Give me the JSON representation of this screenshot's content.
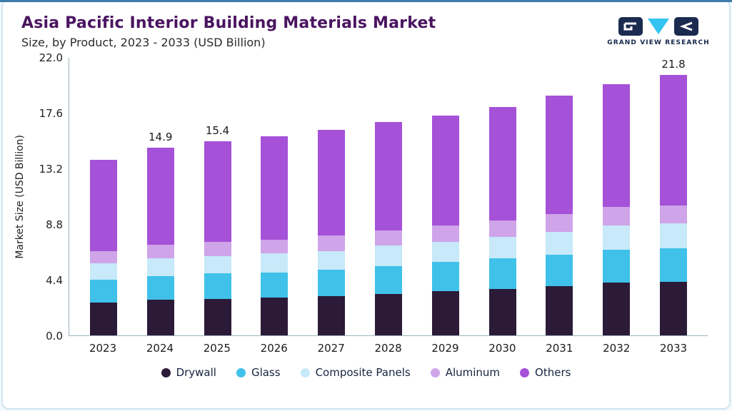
{
  "header": {
    "title": "Asia Pacific Interior Building Materials Market",
    "subtitle": "Size, by Product, 2023 - 2033 (USD Billion)",
    "brand": "GRAND VIEW RESEARCH"
  },
  "chart_data": {
    "type": "bar",
    "stacked": true,
    "title": "Asia Pacific Interior Building Materials Market Size, by Product, 2023 - 2033 (USD Billion)",
    "xlabel": "",
    "ylabel": "Market Size (USD Billion)",
    "ylim": [
      0,
      22
    ],
    "yticks": [
      "0.0",
      "4.4",
      "8.8",
      "13.2",
      "17.6",
      "22.0"
    ],
    "categories": [
      "2023",
      "2024",
      "2025",
      "2026",
      "2027",
      "2028",
      "2029",
      "2030",
      "2031",
      "2032",
      "2033"
    ],
    "series": [
      {
        "name": "Drywall",
        "color": "#2b1b38",
        "values": [
          2.6,
          2.8,
          2.9,
          3.0,
          3.1,
          3.3,
          3.5,
          3.7,
          3.9,
          4.2,
          4.5
        ]
      },
      {
        "name": "Glass",
        "color": "#3fc1ea",
        "values": [
          1.8,
          1.9,
          2.0,
          2.0,
          2.1,
          2.2,
          2.3,
          2.4,
          2.5,
          2.6,
          2.8
        ]
      },
      {
        "name": "Composite Panels",
        "color": "#c7e9f9",
        "values": [
          1.3,
          1.4,
          1.4,
          1.5,
          1.5,
          1.6,
          1.6,
          1.7,
          1.8,
          1.9,
          2.1
        ]
      },
      {
        "name": "Aluminum",
        "color": "#cfa4e9",
        "values": [
          1.0,
          1.1,
          1.1,
          1.1,
          1.2,
          1.2,
          1.3,
          1.3,
          1.4,
          1.5,
          1.5
        ]
      },
      {
        "name": "Others",
        "color": "#a551d8",
        "values": [
          7.2,
          7.7,
          8.0,
          8.2,
          8.4,
          8.6,
          8.7,
          9.0,
          9.4,
          9.7,
          10.9
        ]
      }
    ],
    "totals": [
      13.9,
      14.9,
      15.4,
      15.8,
      16.3,
      16.9,
      17.4,
      18.1,
      19.0,
      19.9,
      21.8
    ],
    "bar_labels": [
      "",
      "14.9",
      "15.4",
      "",
      "",
      "",
      "",
      "",
      "",
      "",
      "21.8"
    ],
    "legend_position": "bottom",
    "grid": false,
    "accent_color": "#3e7dab",
    "logo_triangle_color": "#33c3f0",
    "logo_dark_color": "#1b2a4f"
  }
}
